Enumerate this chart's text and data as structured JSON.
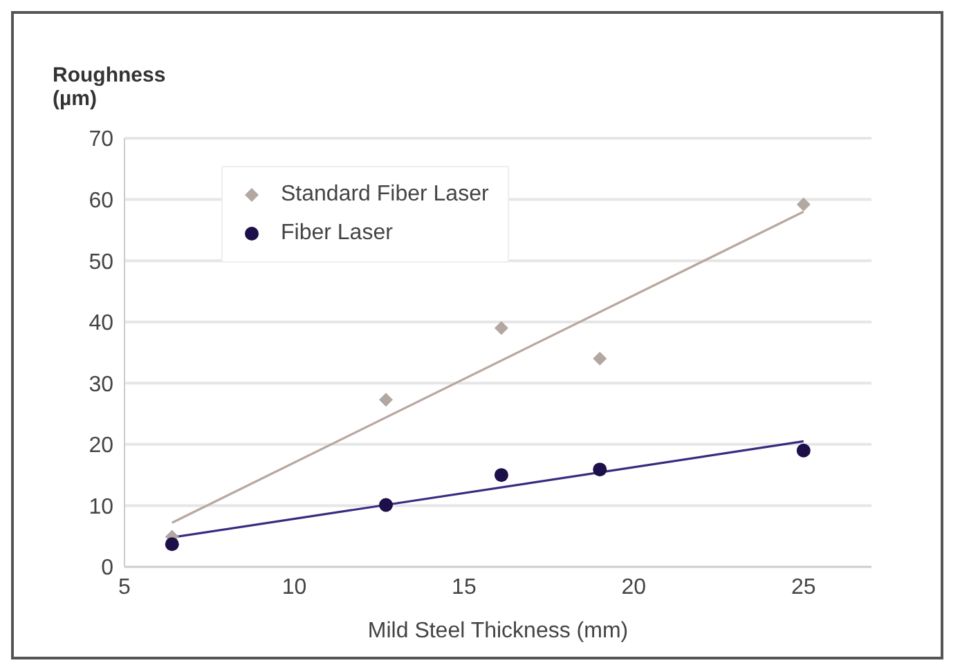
{
  "chart_data": {
    "type": "scatter",
    "ylabel": "Roughness (µm)",
    "xlabel": "Mild Steel Thickness (mm)",
    "xlim": [
      5,
      27
    ],
    "xticks": [
      5,
      10,
      15,
      20,
      25
    ],
    "ylim": [
      0,
      70
    ],
    "yticks": [
      0,
      10,
      20,
      30,
      40,
      50,
      60,
      70
    ],
    "grid": "y",
    "legend": "top left",
    "series": [
      {
        "name": "Standard Fiber Laser",
        "marker": "diamond",
        "color": "#b3a7a1",
        "x": [
          6.4,
          12.7,
          16.1,
          19.0,
          25.0
        ],
        "values": [
          4.9,
          27.3,
          39,
          34,
          59.2
        ]
      },
      {
        "name": "Fiber Laser",
        "marker": "circle",
        "color": "#1c0f4a",
        "x": [
          6.4,
          12.7,
          16.1,
          19.0,
          25.0
        ],
        "values": [
          3.7,
          10.1,
          15,
          15.9,
          19
        ]
      },
      {
        "type": "line",
        "marker": "none",
        "color": "#b8a89f",
        "x": [
          6.4,
          25.0
        ],
        "values": [
          7.2,
          58
        ]
      },
      {
        "type": "line",
        "marker": "none",
        "color": "#3b2a80",
        "x": [
          6.4,
          25.0
        ],
        "values": [
          4.8,
          20.5
        ]
      }
    ]
  }
}
